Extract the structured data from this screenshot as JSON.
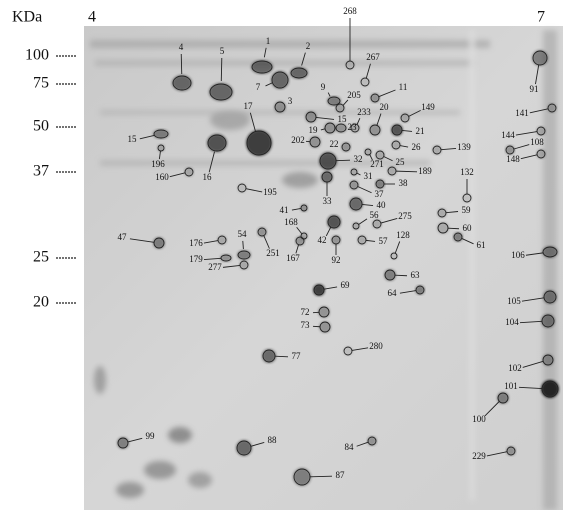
{
  "header": {
    "unit": "KDa",
    "ph_left": "4",
    "ph_right": "7"
  },
  "markers": [
    100,
    75,
    50,
    37,
    25,
    20
  ],
  "spots": [
    "268",
    "4",
    "5",
    "1",
    "2",
    "267",
    "91",
    "7",
    "3",
    "9",
    "205",
    "11",
    "141",
    "149",
    "17",
    "15",
    "233",
    "20",
    "19",
    "23",
    "21",
    "144",
    "15",
    "202",
    "22",
    "26",
    "139",
    "108",
    "148",
    "16",
    "196",
    "160",
    "32",
    "271",
    "25",
    "189",
    "31",
    "132",
    "33",
    "37",
    "38",
    "195",
    "40",
    "41",
    "59",
    "56",
    "275",
    "60",
    "168",
    "128",
    "42",
    "57",
    "61",
    "47",
    "176",
    "54",
    "251",
    "167",
    "92",
    "106",
    "179",
    "277",
    "63",
    "69",
    "64",
    "105",
    "72",
    "104",
    "73",
    "280",
    "77",
    "102",
    "101",
    "100",
    "99",
    "88",
    "84",
    "229",
    "87"
  ]
}
